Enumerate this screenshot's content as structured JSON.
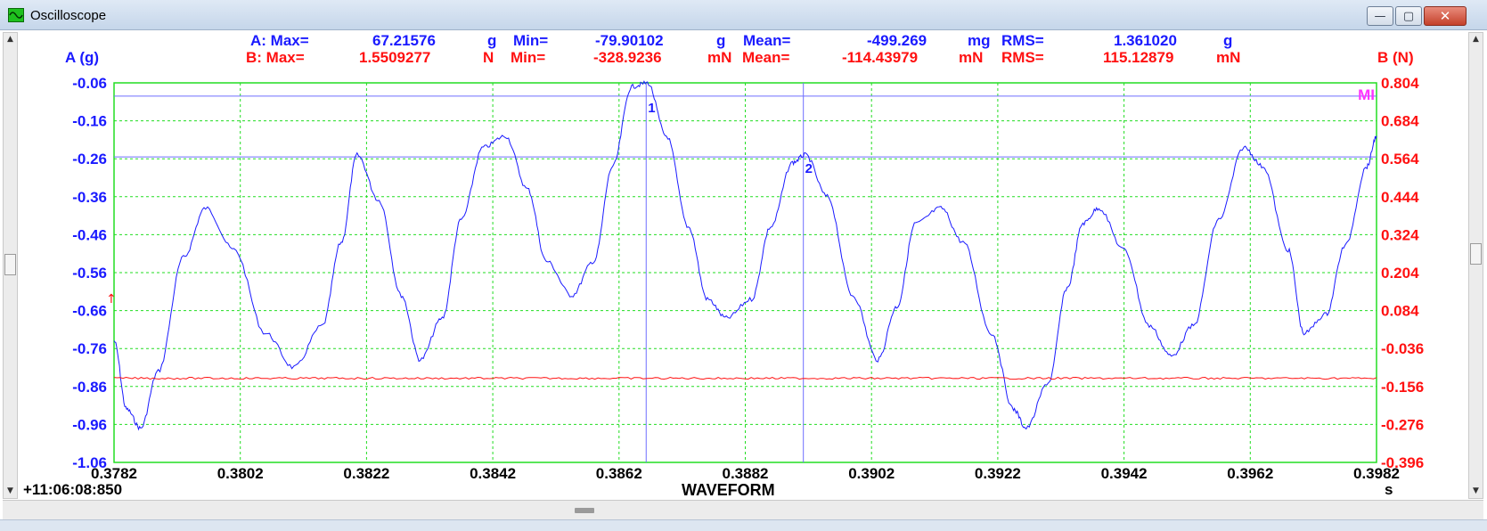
{
  "window": {
    "title": "Oscilloscope",
    "buttons": {
      "minimize": "—",
      "maximize": "▢",
      "close": "✕"
    }
  },
  "stats": {
    "a": {
      "prefix": "A: Max=",
      "max": "67.21576",
      "max_unit": "g",
      "min_label": "Min=",
      "min": "-79.90102",
      "min_unit": "g",
      "mean_label": "Mean=",
      "mean": "-499.269",
      "mean_unit": "mg",
      "rms_label": "RMS=",
      "rms": "1.361020",
      "rms_unit": "g"
    },
    "b": {
      "prefix": "B: Max=",
      "max": "1.5509277",
      "max_unit": "N",
      "min_label": "Min=",
      "min": "-328.9236",
      "min_unit": "mN",
      "mean_label": "Mean=",
      "mean": "-114.43979",
      "mean_unit": "mN",
      "rms_label": "RMS=",
      "rms": "115.12879",
      "rms_unit": "mN"
    }
  },
  "axis_a_title": "A (g)",
  "axis_b_title": "B (N)",
  "time_stamp": "+11:06:08:850",
  "x_label": "WAVEFORM",
  "x_unit": "s",
  "marker_label": "MI",
  "colors": {
    "channel_a": "#1a1aff",
    "channel_b": "#ff1111",
    "grid": "#22dd22",
    "marker_label": "#ff33ff",
    "cursor": "#6f6fff"
  },
  "chart_data": {
    "type": "line",
    "x": [
      0.3782,
      0.3802,
      0.3822,
      0.3842,
      0.3862,
      0.3882,
      0.3902,
      0.3922,
      0.3942,
      0.3962,
      0.3982
    ],
    "x_tick_labels": [
      "0.3782",
      "0.3802",
      "0.3822",
      "0.3842",
      "0.3862",
      "0.3882",
      "0.3902",
      "0.3922",
      "0.3942",
      "0.3962",
      "0.3982"
    ],
    "xlim": [
      0.3782,
      0.3982
    ],
    "y_left_ticks": [
      "-0.06",
      "-0.16",
      "-0.26",
      "-0.36",
      "-0.46",
      "-0.56",
      "-0.66",
      "-0.76",
      "-0.86",
      "-0.96",
      "-1.06"
    ],
    "ylim_left": [
      -1.06,
      -0.06
    ],
    "y_right_ticks": [
      "0.804",
      "0.684",
      "0.564",
      "0.444",
      "0.324",
      "0.204",
      "0.084",
      "-0.036",
      "-0.156",
      "-0.276",
      "-0.396"
    ],
    "ylim_right": [
      -0.396,
      0.804
    ],
    "grid": true,
    "cursors": [
      {
        "label": "1",
        "x": 0.38663,
        "y": -0.095
      },
      {
        "label": "2",
        "x": 0.38912,
        "y": -0.255
      }
    ],
    "series": [
      {
        "name": "A (g)",
        "axis": "left",
        "points": [
          [
            0.3782,
            -0.74
          ],
          [
            0.3784,
            -0.92
          ],
          [
            0.37862,
            -0.97
          ],
          [
            0.3789,
            -0.82
          ],
          [
            0.3793,
            -0.52
          ],
          [
            0.37965,
            -0.39
          ],
          [
            0.3801,
            -0.5
          ],
          [
            0.3806,
            -0.72
          ],
          [
            0.38105,
            -0.81
          ],
          [
            0.3815,
            -0.7
          ],
          [
            0.3818,
            -0.48
          ],
          [
            0.38205,
            -0.25
          ],
          [
            0.3824,
            -0.37
          ],
          [
            0.38275,
            -0.62
          ],
          [
            0.38305,
            -0.79
          ],
          [
            0.3834,
            -0.68
          ],
          [
            0.3837,
            -0.42
          ],
          [
            0.38405,
            -0.23
          ],
          [
            0.3844,
            -0.2
          ],
          [
            0.38475,
            -0.34
          ],
          [
            0.38505,
            -0.53
          ],
          [
            0.38545,
            -0.62
          ],
          [
            0.3858,
            -0.53
          ],
          [
            0.3861,
            -0.28
          ],
          [
            0.3864,
            -0.07
          ],
          [
            0.38665,
            -0.06
          ],
          [
            0.38695,
            -0.2
          ],
          [
            0.3873,
            -0.44
          ],
          [
            0.3876,
            -0.63
          ],
          [
            0.3879,
            -0.68
          ],
          [
            0.3883,
            -0.63
          ],
          [
            0.3886,
            -0.44
          ],
          [
            0.38895,
            -0.27
          ],
          [
            0.38915,
            -0.25
          ],
          [
            0.3895,
            -0.36
          ],
          [
            0.3899,
            -0.62
          ],
          [
            0.3903,
            -0.79
          ],
          [
            0.3906,
            -0.65
          ],
          [
            0.3909,
            -0.43
          ],
          [
            0.3913,
            -0.39
          ],
          [
            0.39165,
            -0.48
          ],
          [
            0.3921,
            -0.72
          ],
          [
            0.39245,
            -0.92
          ],
          [
            0.39265,
            -0.97
          ],
          [
            0.393,
            -0.85
          ],
          [
            0.3933,
            -0.6
          ],
          [
            0.39355,
            -0.43
          ],
          [
            0.3938,
            -0.39
          ],
          [
            0.3942,
            -0.5
          ],
          [
            0.3946,
            -0.7
          ],
          [
            0.39495,
            -0.78
          ],
          [
            0.3953,
            -0.7
          ],
          [
            0.3957,
            -0.42
          ],
          [
            0.3961,
            -0.23
          ],
          [
            0.3964,
            -0.28
          ],
          [
            0.3968,
            -0.5
          ],
          [
            0.39705,
            -0.72
          ],
          [
            0.3974,
            -0.67
          ],
          [
            0.3977,
            -0.49
          ],
          [
            0.39805,
            -0.28
          ],
          [
            0.3982,
            -0.2
          ]
        ]
      },
      {
        "name": "B (N)",
        "axis": "right",
        "points": [
          [
            0.3782,
            -0.13
          ],
          [
            0.3842,
            -0.13
          ],
          [
            0.3902,
            -0.13
          ],
          [
            0.3962,
            -0.13
          ],
          [
            0.3982,
            -0.13
          ]
        ]
      }
    ]
  }
}
